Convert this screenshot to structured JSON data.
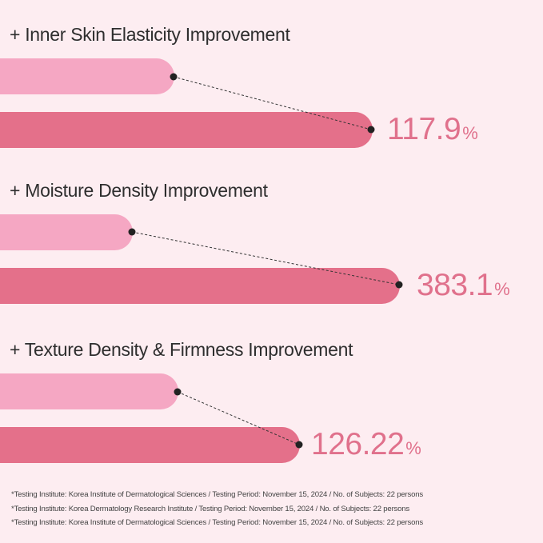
{
  "chart_data": {
    "type": "bar",
    "colors": {
      "before": "#f5a7c3",
      "after": "#e4708a",
      "value_text": "#e0718c",
      "background": "#fdedf1"
    },
    "groups": [
      {
        "title": "+ Inner Skin Elasticity Improvement",
        "value": "117.9",
        "unit": "%"
      },
      {
        "title": "+ Moisture Density Improvement",
        "value": "383.1",
        "unit": "%"
      },
      {
        "title": "+ Texture Density & Firmness Improvement",
        "value": "126.22",
        "unit": "%"
      }
    ]
  },
  "footnotes": [
    "*Testing Institute: Korea Institute of Dermatological Sciences / Testing Period: November 15, 2024 / No. of Subjects: 22 persons",
    "*Testing Institute: Korea Dermatology Research Institute / Testing Period: November 15, 2024 / No. of Subjects: 22 persons",
    "*Testing Institute: Korea Institute of Dermatological Sciences / Testing Period: November 15, 2024 / No. of Subjects: 22 persons"
  ]
}
